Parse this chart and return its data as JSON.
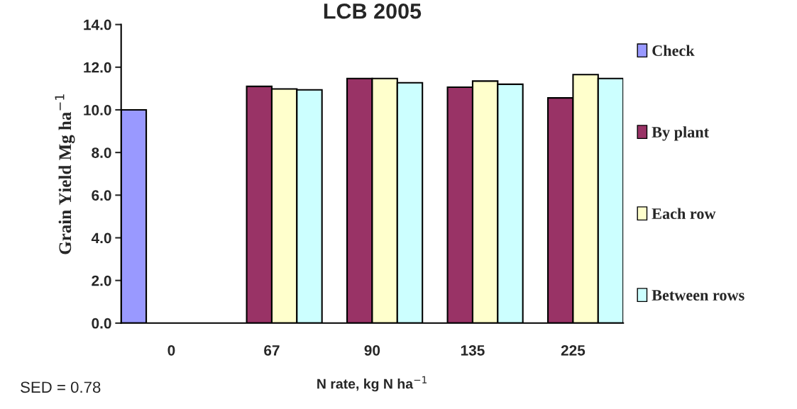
{
  "chart_data": {
    "type": "bar",
    "title": "LCB 2005",
    "xlabel": "N rate, kg N ha$^{−1}$",
    "ylabel": "Grain Yield Mg ha$^{−1}$",
    "categories": [
      "0",
      "67",
      "90",
      "135",
      "225"
    ],
    "series": [
      {
        "name": "Check",
        "color": "#9999ff",
        "values": [
          10.0,
          null,
          null,
          null,
          null
        ]
      },
      {
        "name": "By plant",
        "color": "#993366",
        "values": [
          null,
          11.1,
          11.47,
          11.06,
          10.56
        ]
      },
      {
        "name": "Each row",
        "color": "#ffffcc",
        "values": [
          null,
          10.98,
          11.47,
          11.35,
          11.65
        ]
      },
      {
        "name": "Between rows",
        "color": "#ccffff",
        "values": [
          null,
          10.94,
          11.27,
          11.2,
          11.47
        ]
      }
    ],
    "ylim": [
      0,
      14
    ],
    "yticks": [
      {
        "value": 0,
        "label": "0.0"
      },
      {
        "value": 2,
        "label": "2.0"
      },
      {
        "value": 4,
        "label": "4.0"
      },
      {
        "value": 6,
        "label": "6.0"
      },
      {
        "value": 8,
        "label": "8.0"
      },
      {
        "value": 10,
        "label": "10.0"
      },
      {
        "value": 12,
        "label": "12.0"
      },
      {
        "value": 14,
        "label": "14.0"
      }
    ],
    "grid": false,
    "legend": "right",
    "annotations": [
      "SED = 0.78"
    ]
  }
}
